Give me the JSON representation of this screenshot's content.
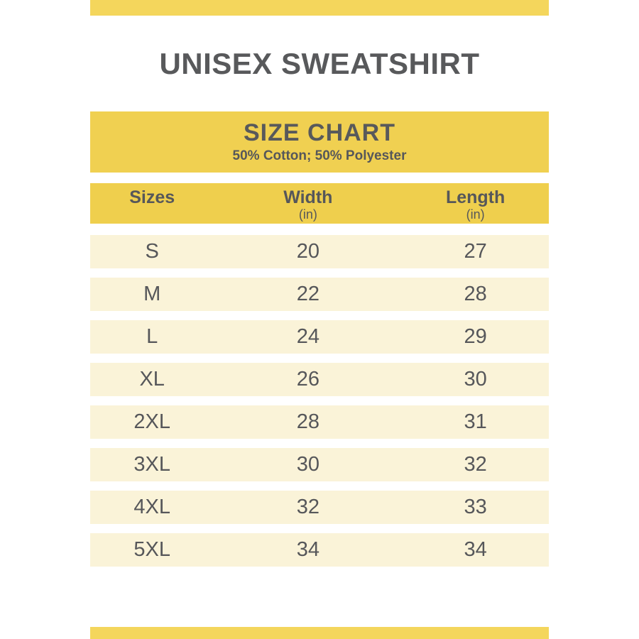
{
  "page": {
    "title": "UNISEX SWEATSHIRT"
  },
  "size_chart": {
    "heading": "SIZE CHART",
    "subheading": "50% Cotton; 50% Polyester",
    "columns": [
      {
        "label": "Sizes",
        "unit": ""
      },
      {
        "label": "Width",
        "unit": "(in)"
      },
      {
        "label": "Length",
        "unit": "(in)"
      }
    ],
    "rows": [
      {
        "size": "S",
        "width": "20",
        "length": "27"
      },
      {
        "size": "M",
        "width": "22",
        "length": "28"
      },
      {
        "size": "L",
        "width": "24",
        "length": "29"
      },
      {
        "size": "XL",
        "width": "26",
        "length": "30"
      },
      {
        "size": "2XL",
        "width": "28",
        "length": "31"
      },
      {
        "size": "3XL",
        "width": "30",
        "length": "32"
      },
      {
        "size": "4XL",
        "width": "32",
        "length": "33"
      },
      {
        "size": "5XL",
        "width": "34",
        "length": "34"
      }
    ]
  },
  "colors": {
    "accent_bar": "#F4D65C",
    "banner_bg": "#F0D051",
    "header_bg": "#EFCF4D",
    "row_bg": "#FAF3D8",
    "title_text": "#58595B",
    "table_text": "#56575A",
    "background": "#FFFFFF"
  },
  "chart_data": {
    "type": "table",
    "title": "SIZE CHART",
    "subtitle": "50% Cotton; 50% Polyester",
    "page_title": "UNISEX SWEATSHIRT",
    "columns": [
      "Sizes",
      "Width (in)",
      "Length (in)"
    ],
    "rows": [
      [
        "S",
        20,
        27
      ],
      [
        "M",
        22,
        28
      ],
      [
        "L",
        24,
        29
      ],
      [
        "XL",
        26,
        30
      ],
      [
        "2XL",
        28,
        31
      ],
      [
        "3XL",
        30,
        32
      ],
      [
        "4XL",
        32,
        33
      ],
      [
        "5XL",
        34,
        34
      ]
    ],
    "units": "inches",
    "layout": "header row gold, data rows cream with white separators, all text centered"
  }
}
